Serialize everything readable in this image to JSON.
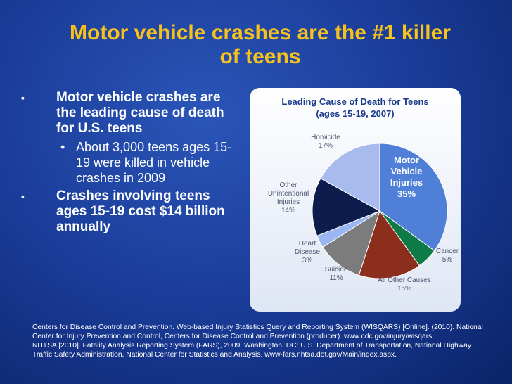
{
  "slide": {
    "title": "Motor vehicle crashes are the #1 killer of teens",
    "bullets": [
      {
        "level": 1,
        "text": "Motor vehicle crashes are the leading cause of death for U.S. teens"
      },
      {
        "level": 2,
        "text": "About 3,000 teens ages 15-19 were killed in vehicle crashes in 2009"
      },
      {
        "level": 1,
        "text": "Crashes involving teens ages 15-19 cost $14 billion annually"
      }
    ],
    "references": [
      "Centers for Disease Control and Prevention. Web-based Injury Statistics Query and Reporting System (WISQARS) [Online]. (2010). National Center for Injury Prevention and Control, Centers for Disease Control and Prevention (producer). www.cdc.gov/injury/wisqars.",
      "NHTSA [2010]. Fatality Analysis Reporting System (FARS), 2009. Washington, DC: U.S. Department of Transportation, National Highway Traffic Safety Administration, National Center for Statistics and Analysis. www-fars.nhtsa.dot.gov/Main/index.aspx."
    ]
  },
  "chart_data": {
    "type": "pie",
    "title": "Leading Cause of Death for Teens",
    "subtitle": "(ages 15-19, 2007)",
    "categories": [
      "Motor Vehicle Injuries",
      "Cancer",
      "All Other Causes",
      "Suicide",
      "Heart Disease",
      "Other Unintentional Injuries",
      "Homicide"
    ],
    "values": [
      35,
      5,
      15,
      11,
      3,
      14,
      17
    ],
    "value_labels": [
      "35%",
      "5%",
      "15%",
      "11%",
      "3%",
      "14%",
      "17%"
    ],
    "colors": [
      "#4f7fd6",
      "#0e7a46",
      "#8b2e1c",
      "#7c7c7c",
      "#9ab6f2",
      "#0c1c4c",
      "#a7bbee"
    ]
  }
}
